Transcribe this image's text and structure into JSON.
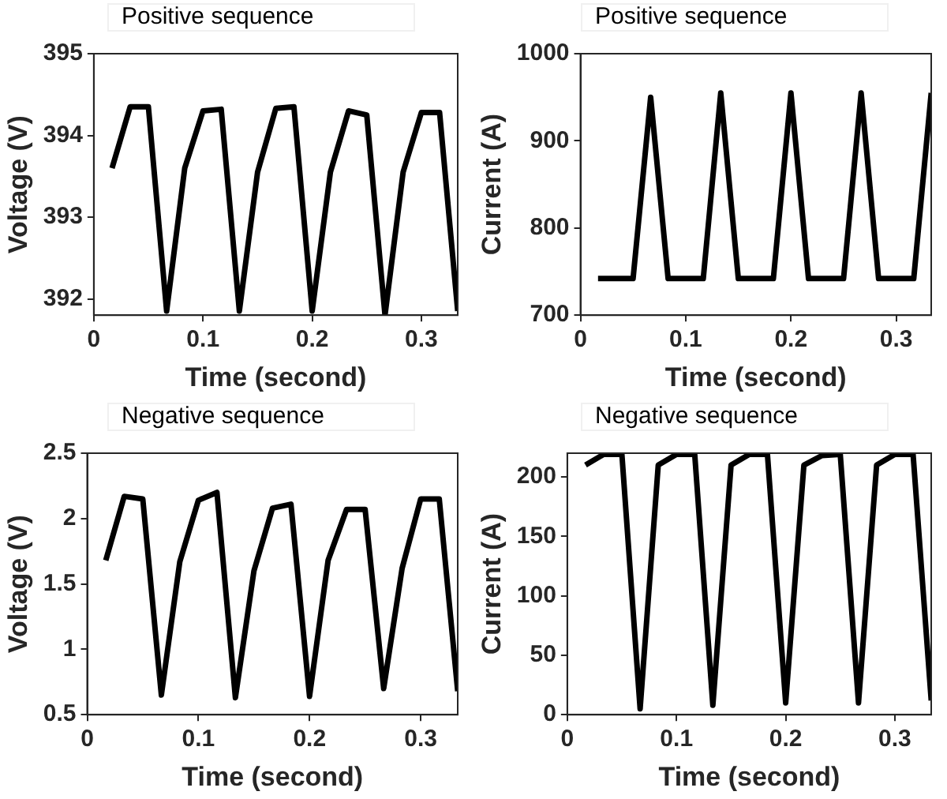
{
  "chart_data": [
    {
      "type": "line",
      "title": "Positive sequence",
      "xlabel": "Time (second)",
      "ylabel": "Voltage (V)",
      "x": [
        0.0167,
        0.0333,
        0.05,
        0.0667,
        0.0833,
        0.1,
        0.1167,
        0.1333,
        0.15,
        0.1667,
        0.1833,
        0.2,
        0.2167,
        0.2333,
        0.25,
        0.2667,
        0.2833,
        0.3,
        0.3167,
        0.3333
      ],
      "series": [
        {
          "color": "#000000",
          "values": [
            393.6,
            394.35,
            394.35,
            391.85,
            393.6,
            394.3,
            394.32,
            391.85,
            393.55,
            394.33,
            394.35,
            391.85,
            393.55,
            394.3,
            394.25,
            391.8,
            393.55,
            394.28,
            394.28,
            391.85
          ]
        }
      ],
      "xlim": [
        0,
        0.3333
      ],
      "xticks": [
        0,
        0.1,
        0.2,
        0.3
      ],
      "ylim": [
        391.8,
        395
      ],
      "yticks": [
        392,
        393,
        394,
        395
      ]
    },
    {
      "type": "line",
      "title": "Positive sequence",
      "xlabel": "Time (second)",
      "ylabel": "Current (A)",
      "x": [
        0.0167,
        0.0333,
        0.05,
        0.0667,
        0.0833,
        0.1,
        0.1167,
        0.1333,
        0.15,
        0.1667,
        0.1833,
        0.2,
        0.2167,
        0.2333,
        0.25,
        0.2667,
        0.2833,
        0.3,
        0.3167,
        0.3333
      ],
      "series": [
        {
          "color": "#000000",
          "values": [
            742,
            742,
            742,
            950,
            742,
            742,
            742,
            955,
            742,
            742,
            742,
            955,
            742,
            742,
            742,
            955,
            742,
            742,
            742,
            955
          ]
        }
      ],
      "xlim": [
        0,
        0.3333
      ],
      "xticks": [
        0,
        0.1,
        0.2,
        0.3
      ],
      "ylim": [
        700,
        1000
      ],
      "yticks": [
        700,
        800,
        900,
        1000
      ]
    },
    {
      "type": "line",
      "title": "Negative sequence",
      "xlabel": "Time (second)",
      "ylabel": "Voltage (V)",
      "x": [
        0.0167,
        0.0333,
        0.05,
        0.0667,
        0.0833,
        0.1,
        0.1167,
        0.1333,
        0.15,
        0.1667,
        0.1833,
        0.2,
        0.2167,
        0.2333,
        0.25,
        0.2667,
        0.2833,
        0.3,
        0.3167,
        0.3333
      ],
      "series": [
        {
          "color": "#000000",
          "values": [
            1.68,
            2.17,
            2.15,
            0.65,
            1.67,
            2.14,
            2.2,
            0.63,
            1.6,
            2.08,
            2.11,
            0.64,
            1.68,
            2.07,
            2.07,
            0.7,
            1.62,
            2.15,
            2.15,
            0.68
          ]
        }
      ],
      "xlim": [
        0,
        0.3333
      ],
      "xticks": [
        0,
        0.1,
        0.2,
        0.3
      ],
      "ylim": [
        0.5,
        2.5
      ],
      "yticks": [
        0.5,
        1,
        1.5,
        2,
        2.5
      ]
    },
    {
      "type": "line",
      "title": "Negative sequence",
      "xlabel": "Time (second)",
      "ylabel": "Current (A)",
      "x": [
        0.0167,
        0.0333,
        0.05,
        0.0667,
        0.0833,
        0.1,
        0.1167,
        0.1333,
        0.15,
        0.1667,
        0.1833,
        0.2,
        0.2167,
        0.2333,
        0.25,
        0.2667,
        0.2833,
        0.3,
        0.3167,
        0.3333
      ],
      "series": [
        {
          "color": "#000000",
          "values": [
            210,
            219,
            219,
            5,
            210,
            219,
            219,
            8,
            210,
            219,
            219,
            10,
            210,
            218,
            219,
            10,
            210,
            219,
            219,
            12
          ]
        }
      ],
      "xlim": [
        0,
        0.3333
      ],
      "xticks": [
        0,
        0.1,
        0.2,
        0.3
      ],
      "ylim": [
        0,
        220
      ],
      "yticks": [
        0,
        50,
        100,
        150,
        200
      ]
    }
  ]
}
